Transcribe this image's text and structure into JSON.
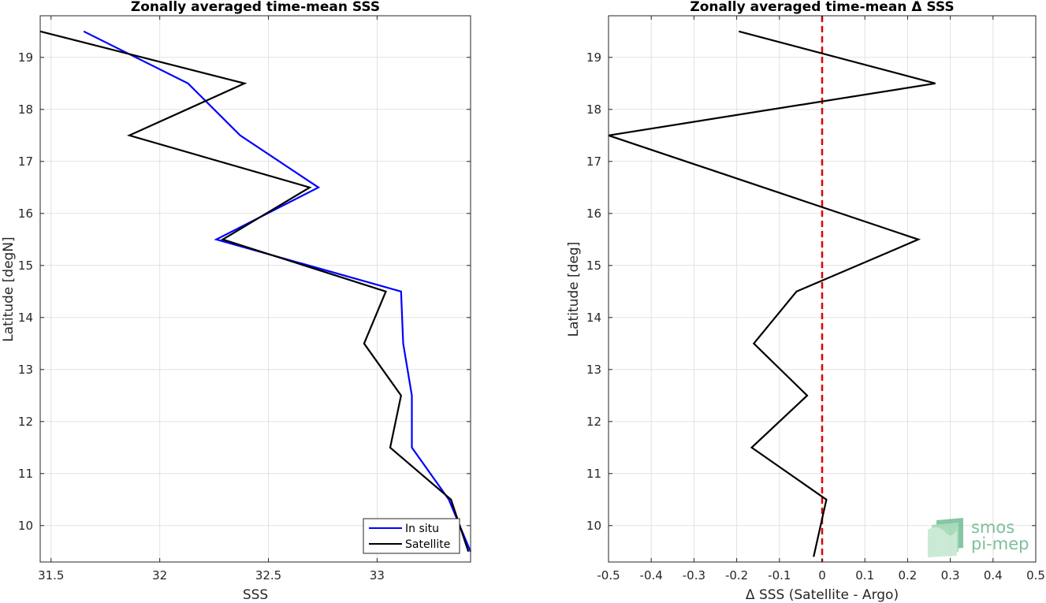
{
  "chart_data": [
    {
      "type": "line",
      "title": "Zonally averaged time-mean SSS",
      "xlabel": "SSS",
      "ylabel": "Latitude [degN]",
      "xlim": [
        31.45,
        33.43
      ],
      "ylim": [
        9.3,
        19.8
      ],
      "xticks": [
        31.5,
        32,
        32.5,
        33
      ],
      "xtick_labels": [
        "31.5",
        "32",
        "32.5",
        "33"
      ],
      "yticks": [
        10,
        11,
        12,
        13,
        14,
        15,
        16,
        17,
        18,
        19
      ],
      "ytick_labels": [
        "10",
        "11",
        "12",
        "13",
        "14",
        "15",
        "16",
        "17",
        "18",
        "19"
      ],
      "grid": true,
      "legend": {
        "position": "bottom-right",
        "entries": [
          "In situ",
          "Satellite"
        ]
      },
      "series": [
        {
          "name": "In situ",
          "color": "#0000ff",
          "x": [
            31.65,
            32.13,
            32.37,
            32.73,
            32.26,
            33.11,
            33.12,
            33.16,
            33.16,
            33.33,
            33.43
          ],
          "y": [
            19.5,
            18.5,
            17.5,
            16.5,
            15.5,
            14.5,
            13.5,
            12.5,
            11.5,
            10.5,
            9.5
          ]
        },
        {
          "name": "Satellite",
          "color": "#000000",
          "x": [
            31.45,
            32.39,
            31.86,
            32.69,
            32.29,
            33.04,
            32.94,
            33.11,
            33.06,
            33.34,
            33.42
          ],
          "y": [
            19.5,
            18.5,
            17.5,
            16.5,
            15.5,
            14.5,
            13.5,
            12.5,
            11.5,
            10.5,
            9.5
          ]
        }
      ]
    },
    {
      "type": "line",
      "title": "Zonally averaged time-mean Δ SSS",
      "xlabel": "Δ SSS (Satellite - Argo)",
      "ylabel": "Latitude [deg]",
      "xlim": [
        -0.5,
        0.5
      ],
      "ylim": [
        9.3,
        19.8
      ],
      "xticks": [
        -0.5,
        -0.4,
        -0.3,
        -0.2,
        -0.1,
        0,
        0.1,
        0.2,
        0.3,
        0.4,
        0.5
      ],
      "xtick_labels": [
        "-0.5",
        "-0.4",
        "-0.3",
        "-0.2",
        "-0.1",
        "0",
        "0.1",
        "0.2",
        "0.3",
        "0.4",
        "0.5"
      ],
      "yticks": [
        10,
        11,
        12,
        13,
        14,
        15,
        16,
        17,
        18,
        19
      ],
      "ytick_labels": [
        "10",
        "11",
        "12",
        "13",
        "14",
        "15",
        "16",
        "17",
        "18",
        "19"
      ],
      "grid": true,
      "reference_line": {
        "x": 0,
        "color": "#e00000",
        "style": "dashed"
      },
      "series": [
        {
          "color": "#000000",
          "x": [
            -0.195,
            0.265,
            -0.5,
            0.225,
            -0.06,
            -0.16,
            -0.035,
            -0.165,
            0.01,
            -0.02
          ],
          "y": [
            19.5,
            18.5,
            17.5,
            15.5,
            14.5,
            13.5,
            12.5,
            11.5,
            10.5,
            9.4
          ]
        }
      ]
    }
  ],
  "logo": {
    "line1": "smos",
    "line2": "pi-mep"
  }
}
